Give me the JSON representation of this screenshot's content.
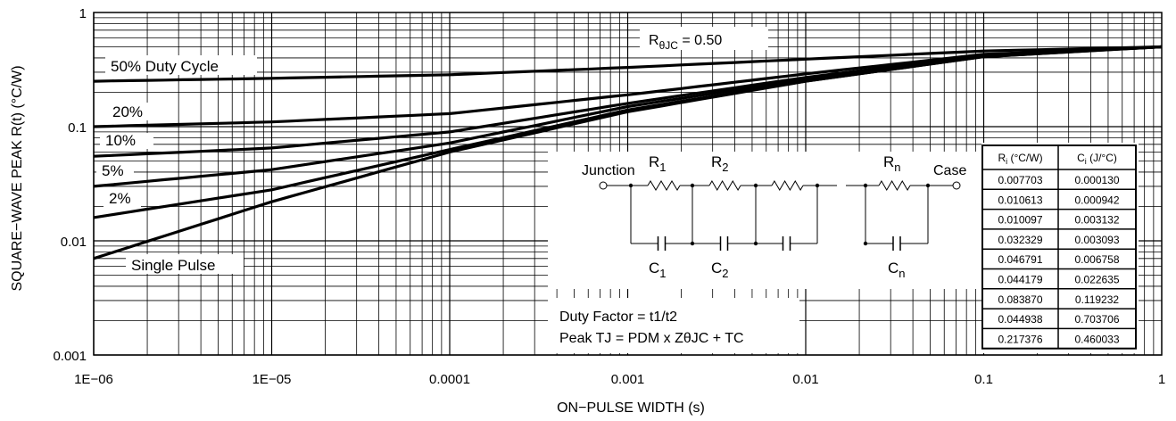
{
  "chart_data": {
    "type": "line",
    "xlabel": "ON−PULSE WIDTH (s)",
    "ylabel": "SQUARE−WAVE PEAK R(t) (°C/W)",
    "xscale": "log",
    "yscale": "log",
    "xlim": [
      1e-06,
      1
    ],
    "ylim": [
      0.001,
      1
    ],
    "x_ticks": [
      "1E−06",
      "1E−05",
      "0.0001",
      "0.001",
      "0.01",
      "0.1",
      "1"
    ],
    "y_ticks": [
      "0.001",
      "0.01",
      "0.1",
      "1"
    ],
    "grid": true,
    "series": [
      {
        "name": "50% Duty Cycle",
        "x": [
          1e-06,
          1e-05,
          0.0001,
          0.001,
          0.01,
          0.1,
          1
        ],
        "y": [
          0.25,
          0.265,
          0.285,
          0.33,
          0.39,
          0.46,
          0.5
        ]
      },
      {
        "name": "20%",
        "x": [
          1e-06,
          1e-05,
          0.0001,
          0.001,
          0.01,
          0.1,
          1
        ],
        "y": [
          0.1,
          0.11,
          0.13,
          0.19,
          0.29,
          0.43,
          0.5
        ]
      },
      {
        "name": "10%",
        "x": [
          1e-06,
          1e-05,
          0.0001,
          0.001,
          0.01,
          0.1,
          1
        ],
        "y": [
          0.055,
          0.065,
          0.09,
          0.16,
          0.27,
          0.42,
          0.5
        ]
      },
      {
        "name": "5%",
        "x": [
          1e-06,
          1e-05,
          0.0001,
          0.001,
          0.01,
          0.1,
          1
        ],
        "y": [
          0.03,
          0.042,
          0.072,
          0.15,
          0.26,
          0.42,
          0.5
        ]
      },
      {
        "name": "2%",
        "x": [
          1e-06,
          1e-05,
          0.0001,
          0.001,
          0.01,
          0.1,
          1
        ],
        "y": [
          0.016,
          0.028,
          0.063,
          0.14,
          0.25,
          0.41,
          0.5
        ]
      },
      {
        "name": "Single Pulse",
        "x": [
          1e-06,
          1e-05,
          0.0001,
          0.001,
          0.01,
          0.1,
          1
        ],
        "y": [
          0.007,
          0.022,
          0.06,
          0.135,
          0.25,
          0.41,
          0.5
        ]
      }
    ],
    "annotations": {
      "rth": "RθJC = 0.50",
      "duty_factor": "Duty Factor = t1/t2",
      "peak": "Peak TJ = PDM x ZθJC + TC"
    }
  },
  "circuit": {
    "junction": "Junction",
    "case": "Case",
    "r1": "R1",
    "r2": "R2",
    "rn": "Rn",
    "c1": "C1",
    "c2": "C2",
    "cn": "Cn"
  },
  "rc_table": {
    "headers": [
      "Ri (°C/W)",
      "Ci (J/°C)"
    ],
    "rows": [
      [
        "0.007703",
        "0.000130"
      ],
      [
        "0.010613",
        "0.000942"
      ],
      [
        "0.010097",
        "0.003132"
      ],
      [
        "0.032329",
        "0.003093"
      ],
      [
        "0.046791",
        "0.006758"
      ],
      [
        "0.044179",
        "0.022635"
      ],
      [
        "0.083870",
        "0.119232"
      ],
      [
        "0.044938",
        "0.703706"
      ],
      [
        "0.217376",
        "0.460033"
      ]
    ]
  }
}
